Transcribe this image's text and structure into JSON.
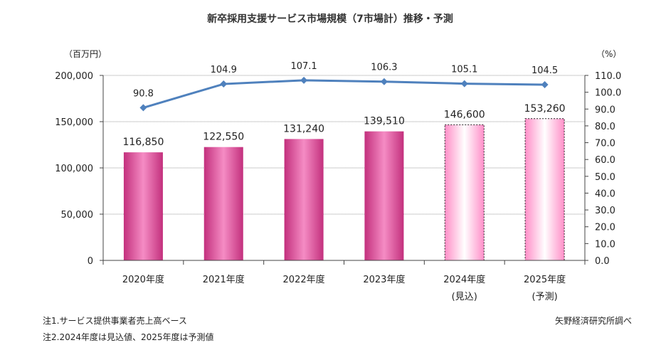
{
  "chart_data": {
    "type": "bar+line",
    "title": "新卒採用支援サービス市場規模（7市場計）推移・予測",
    "y_left_unit": "（百万円）",
    "y_right_unit": "（%）",
    "ylim_left": [
      0,
      200000
    ],
    "ylim_right": [
      0,
      110
    ],
    "y_left_ticks": [
      "0",
      "50,000",
      "100,000",
      "150,000",
      "200,000"
    ],
    "y_right_ticks": [
      "0.0",
      "10.0",
      "20.0",
      "30.0",
      "40.0",
      "50.0",
      "60.0",
      "70.0",
      "80.0",
      "90.0",
      "100.0",
      "110.0"
    ],
    "categories": [
      {
        "label": "2020年度",
        "sub": ""
      },
      {
        "label": "2021年度",
        "sub": ""
      },
      {
        "label": "2022年度",
        "sub": ""
      },
      {
        "label": "2023年度",
        "sub": ""
      },
      {
        "label": "2024年度",
        "sub": "(見込)"
      },
      {
        "label": "2025年度",
        "sub": "(予測)"
      }
    ],
    "bars": {
      "values": [
        116850,
        122550,
        131240,
        139510,
        146600,
        153260
      ],
      "labels": [
        "116,850",
        "122,550",
        "131,240",
        "139,510",
        "146,600",
        "153,260"
      ],
      "estimated": [
        false,
        false,
        false,
        false,
        true,
        true
      ],
      "color": "#e0489a"
    },
    "line": {
      "values": [
        90.8,
        104.9,
        107.1,
        106.3,
        105.1,
        104.5
      ],
      "labels": [
        "90.8",
        "104.9",
        "107.1",
        "106.3",
        "105.1",
        "104.5"
      ],
      "color": "#4f81bd"
    },
    "grid": true,
    "notes": [
      "注1.サービス提供事業者売上高ベース",
      "注2.2024年度は見込値、2025年度は予測値"
    ],
    "source": "矢野経済研究所調べ"
  }
}
